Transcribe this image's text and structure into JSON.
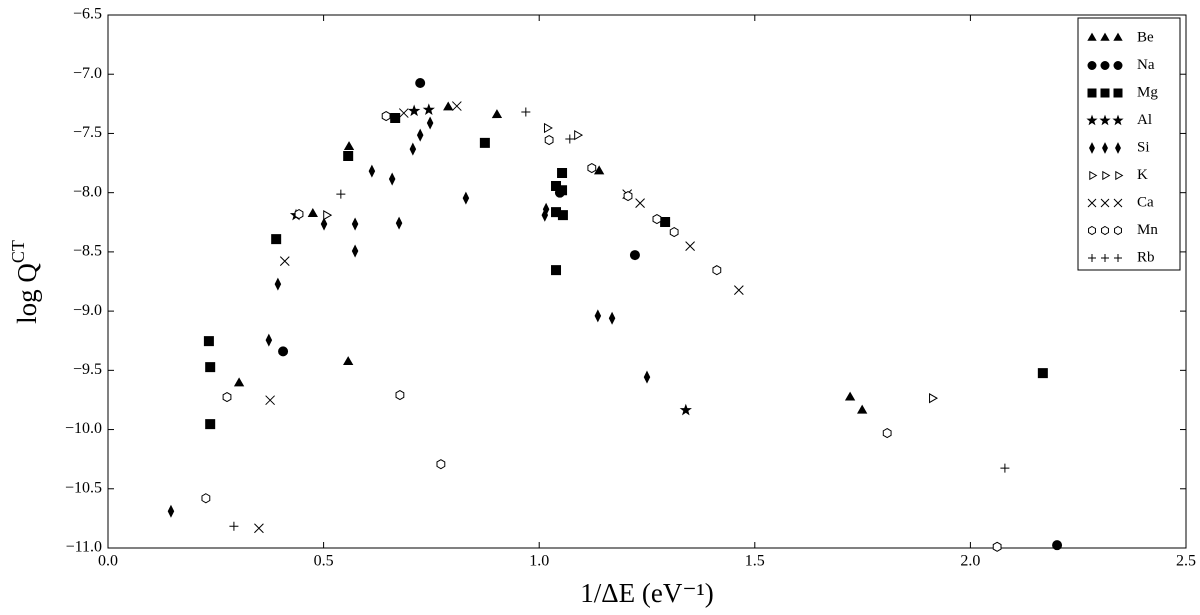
{
  "chart_data": {
    "type": "scatter",
    "x_label": "1/ΔE (eV⁻¹)",
    "y_label": {
      "text": "log Q",
      "superscript": "CT"
    },
    "xlim": [
      0,
      2.5
    ],
    "ylim": [
      -11,
      -6.5
    ],
    "xticks": [
      {
        "value": 0,
        "label": "0.0"
      },
      0.5,
      {
        "value": 1,
        "label": "1.0"
      },
      1.5,
      {
        "value": 2,
        "label": "2.0"
      },
      2.5
    ],
    "yticks": [
      {
        "value": -11,
        "label": "−11.0"
      },
      {
        "value": -10.5,
        "label": "−10.5"
      },
      {
        "value": -10,
        "label": "−10.0"
      },
      {
        "value": -9.5,
        "label": "−9.5"
      },
      {
        "value": -9,
        "label": "−9.0"
      },
      {
        "value": -8.5,
        "label": "−8.5"
      },
      {
        "value": -8,
        "label": "−8.0"
      },
      {
        "value": -7.5,
        "label": "−7.5"
      },
      {
        "value": -7,
        "label": "−7.0"
      },
      {
        "value": -6.5,
        "label": "−6.5"
      }
    ],
    "grid": false,
    "legend": "upper right",
    "series": [
      {
        "name": "Be",
        "color": "#000000",
        "marker": "triangle",
        "x": [
          0.559,
          0.475,
          0.789,
          0.902,
          1.139,
          0.557,
          0.304,
          1.721,
          1.749
        ],
        "values": [
          -7.615,
          -8.18,
          -7.28,
          -7.345,
          -7.82,
          -9.43,
          -9.61,
          -9.73,
          -9.84
        ]
      },
      {
        "name": "Na",
        "color": "#000000",
        "marker": "circle",
        "x": [
          0.724,
          0.406,
          1.048,
          1.222,
          2.201
        ],
        "values": [
          -7.074,
          -9.34,
          -8.0,
          -8.527,
          -10.976
        ]
      },
      {
        "name": "Mg",
        "color": "#000000",
        "marker": "square",
        "x": [
          0.234,
          0.237,
          0.237,
          0.39,
          0.557,
          0.666,
          0.874,
          1.039,
          1.053,
          1.053,
          1.039,
          1.055,
          1.039,
          1.292,
          2.168
        ],
        "values": [
          -9.253,
          -9.473,
          -9.954,
          -8.392,
          -7.69,
          -7.37,
          -7.58,
          -7.944,
          -7.834,
          -7.98,
          -8.164,
          -8.19,
          -8.654,
          -8.248,
          -9.524
        ]
      },
      {
        "name": "Al",
        "color": "#000000",
        "marker": "star",
        "x": [
          0.436,
          0.71,
          0.744,
          1.34
        ],
        "values": [
          -8.19,
          -7.31,
          -7.3,
          -9.836
        ]
      },
      {
        "name": "Si",
        "color": "#000000",
        "marker": "diamond",
        "x": [
          0.146,
          0.373,
          0.394,
          0.501,
          0.573,
          0.573,
          0.612,
          0.659,
          0.675,
          0.707,
          0.724,
          0.747,
          0.83,
          1.013,
          1.016,
          1.136,
          1.169,
          1.25
        ],
        "values": [
          -10.69,
          -9.245,
          -8.772,
          -8.265,
          -8.265,
          -8.493,
          -7.818,
          -7.885,
          -8.257,
          -7.632,
          -7.514,
          -7.412,
          -8.046,
          -8.19,
          -8.14,
          -9.04,
          -9.06,
          -9.557
        ]
      },
      {
        "name": "K",
        "color": "#000000",
        "marker": "tri-right",
        "x": [
          0.506,
          1.018,
          1.088,
          1.911
        ],
        "values": [
          -8.19,
          -7.454,
          -7.514,
          -9.735
        ]
      },
      {
        "name": "Ca",
        "color": "#000000",
        "marker": "x",
        "x": [
          0.41,
          0.376,
          0.35,
          0.686,
          0.809,
          1.204,
          1.234,
          1.35,
          1.463
        ],
        "values": [
          -8.578,
          -9.752,
          -10.833,
          -7.328,
          -7.269,
          -8.012,
          -8.088,
          -8.451,
          -8.823
        ]
      },
      {
        "name": "Mn",
        "color": "#000000",
        "marker": "hexagon",
        "x": [
          0.227,
          0.276,
          0.443,
          0.645,
          0.677,
          0.772,
          1.023,
          1.122,
          1.206,
          1.273,
          1.313,
          1.412,
          1.807,
          2.062
        ],
        "values": [
          -10.58,
          -9.726,
          -8.181,
          -7.353,
          -9.709,
          -10.292,
          -7.556,
          -7.792,
          -8.029,
          -8.223,
          -8.333,
          -8.654,
          -10.03,
          -10.99
        ]
      },
      {
        "name": "Rb",
        "color": "#000000",
        "marker": "plus",
        "x": [
          0.292,
          0.54,
          0.969,
          1.071,
          2.08
        ],
        "values": [
          -10.816,
          -8.012,
          -7.319,
          -7.547,
          -10.326
        ]
      }
    ]
  }
}
